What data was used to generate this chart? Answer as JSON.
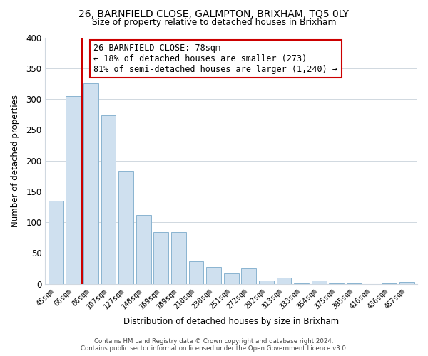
{
  "title": "26, BARNFIELD CLOSE, GALMPTON, BRIXHAM, TQ5 0LY",
  "subtitle": "Size of property relative to detached houses in Brixham",
  "xlabel": "Distribution of detached houses by size in Brixham",
  "ylabel": "Number of detached properties",
  "categories": [
    "45sqm",
    "66sqm",
    "86sqm",
    "107sqm",
    "127sqm",
    "148sqm",
    "169sqm",
    "189sqm",
    "210sqm",
    "230sqm",
    "251sqm",
    "272sqm",
    "292sqm",
    "313sqm",
    "333sqm",
    "354sqm",
    "375sqm",
    "395sqm",
    "416sqm",
    "436sqm",
    "457sqm"
  ],
  "values": [
    135,
    305,
    325,
    273,
    183,
    112,
    84,
    84,
    37,
    27,
    17,
    25,
    5,
    10,
    1,
    5,
    1,
    1,
    0,
    1,
    3
  ],
  "bar_facecolor": "#cfe0ef",
  "bar_edgecolor": "#8ab4d0",
  "vline_color": "#cc0000",
  "vline_x": 1.5,
  "ylim": [
    0,
    400
  ],
  "yticks": [
    0,
    50,
    100,
    150,
    200,
    250,
    300,
    350,
    400
  ],
  "annotation_text": "26 BARNFIELD CLOSE: 78sqm\n← 18% of detached houses are smaller (273)\n81% of semi-detached houses are larger (1,240) →",
  "annotation_box_facecolor": "#ffffff",
  "annotation_box_edgecolor": "#cc0000",
  "footer_line1": "Contains HM Land Registry data © Crown copyright and database right 2024.",
  "footer_line2": "Contains public sector information licensed under the Open Government Licence v3.0.",
  "bg_color": "#ffffff",
  "grid_color": "#d0d8e0"
}
